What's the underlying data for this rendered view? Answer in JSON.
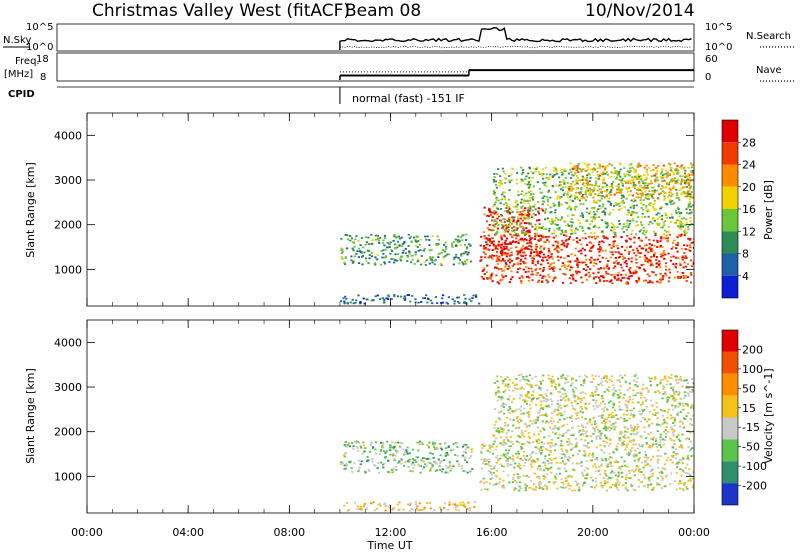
{
  "header": {
    "title": "Christmas Valley West (fitACF)",
    "beam": "Beam 08",
    "date": "10/Nov/2014"
  },
  "time_axis": {
    "ticks": [
      "00:00",
      "04:00",
      "08:00",
      "12:00",
      "16:00",
      "20:00",
      "00:00"
    ],
    "label": "Time UT"
  },
  "cpid_text": "normal (fast) -151 IF",
  "chart_data": [
    {
      "type": "line",
      "name": "nsky-nsearch",
      "labels": {
        "left": "N.Sky",
        "right": "N.Search"
      },
      "left_ticks": [
        "10^5",
        "10^0"
      ],
      "right_ticks": [
        "10^5",
        "10^0"
      ],
      "x_range_hours": [
        0,
        24
      ],
      "data_start_hour": 10.0
    },
    {
      "type": "line",
      "name": "freq-nave",
      "labels": {
        "left_top": "Freq.",
        "left_bottom": "[MHz]",
        "right": "Nave"
      },
      "left_ticks": [
        "18",
        "8"
      ],
      "right_ticks": [
        "60",
        "0"
      ],
      "freq_steps": [
        {
          "x": [
            10.0,
            15.1
          ],
          "freq": 10.5
        },
        {
          "x": [
            15.1,
            24.0
          ],
          "freq": 13.5
        }
      ],
      "nave_steps": [
        {
          "x": [
            10.0,
            15.1
          ],
          "nave": 27
        },
        {
          "x": [
            15.1,
            24.0
          ],
          "nave": 33
        }
      ]
    },
    {
      "type": "line",
      "name": "cpid",
      "label": "CPID",
      "change_hour": 10.0
    },
    {
      "type": "heatmap",
      "name": "power",
      "ylabel": "Slant Range [km]",
      "y_ticks": [
        "1000",
        "2000",
        "3000",
        "4000"
      ],
      "y_range": [
        180,
        4500
      ],
      "x_range_hours": [
        0,
        24
      ],
      "colorbar": {
        "label": "Power [dB]",
        "ticks": [
          "4",
          "8",
          "12",
          "16",
          "20",
          "24",
          "28"
        ],
        "colors": [
          "#0a1fd6",
          "#1f5fa8",
          "#2e8b57",
          "#6cc63a",
          "#f2d100",
          "#ff8a00",
          "#f23a00",
          "#e00000"
        ]
      },
      "regions": [
        {
          "x": [
            10.0,
            15.2
          ],
          "y": [
            1100,
            1800
          ],
          "level": 0.35
        },
        {
          "x": [
            10.0,
            15.5
          ],
          "y": [
            250,
            450
          ],
          "level": 0.2
        },
        {
          "x": [
            15.5,
            24.0
          ],
          "y": [
            700,
            1800
          ],
          "level": 0.85
        },
        {
          "x": [
            15.6,
            18.0
          ],
          "y": [
            1200,
            2400
          ],
          "level": 0.9
        },
        {
          "x": [
            16.0,
            24.0
          ],
          "y": [
            1800,
            3300
          ],
          "level": 0.45
        },
        {
          "x": [
            19.0,
            24.0
          ],
          "y": [
            2600,
            3400
          ],
          "level": 0.6
        }
      ]
    },
    {
      "type": "heatmap",
      "name": "velocity",
      "ylabel": "Slant Range [km]",
      "y_ticks": [
        "1000",
        "2000",
        "3000",
        "4000"
      ],
      "y_range": [
        180,
        4500
      ],
      "x_range_hours": [
        0,
        24
      ],
      "colorbar": {
        "label": "Velocity [m s^-1]",
        "ticks": [
          "200",
          "100",
          "50",
          "15",
          "-15",
          "-50",
          "-100",
          "-200"
        ],
        "colors": [
          "#1a35c8",
          "#2f8f6a",
          "#5cc44b",
          "#c8c8c8",
          "#f3c21a",
          "#ff8f00",
          "#f24f00",
          "#e00000"
        ]
      },
      "regions": [
        {
          "x": [
            10.0,
            15.2
          ],
          "y": [
            1100,
            1800
          ],
          "level": 0.35
        },
        {
          "x": [
            10.0,
            15.5
          ],
          "y": [
            250,
            450
          ],
          "level": 0.55
        },
        {
          "x": [
            15.5,
            24.0
          ],
          "y": [
            700,
            1800
          ],
          "level": 0.45
        },
        {
          "x": [
            16.0,
            24.0
          ],
          "y": [
            1800,
            3300
          ],
          "level": 0.45
        }
      ]
    }
  ]
}
